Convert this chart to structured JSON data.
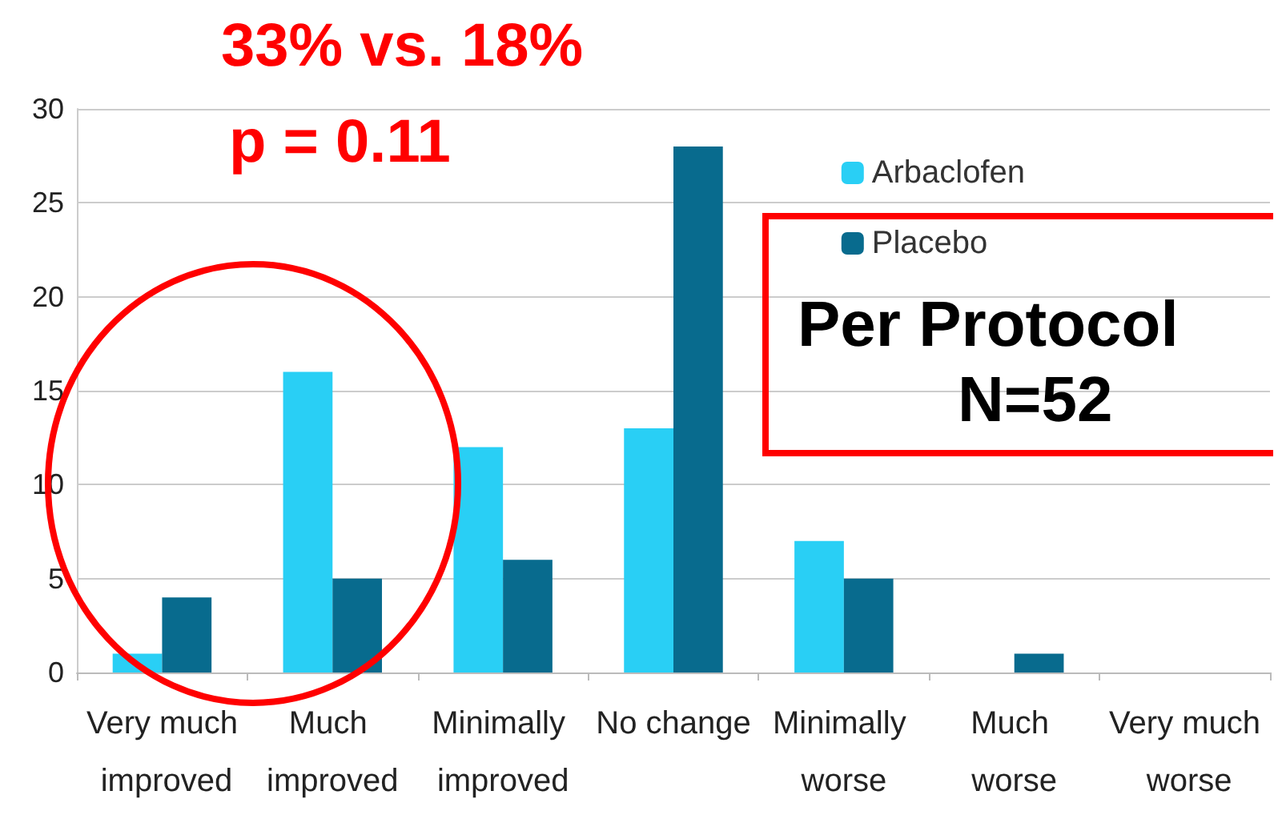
{
  "chart_data": {
    "type": "bar",
    "categories": [
      "Very much improved",
      "Much improved",
      "Minimally improved",
      "No change",
      "Minimally worse",
      "Much worse",
      "Very much worse"
    ],
    "series": [
      {
        "name": "Arbaclofen",
        "color": "#29cff5",
        "values": [
          1,
          16,
          12,
          13,
          7,
          0,
          0
        ]
      },
      {
        "name": "Placebo",
        "color": "#086b8e",
        "values": [
          4,
          5,
          6,
          28,
          5,
          1,
          0
        ]
      }
    ],
    "ylim": [
      0,
      30
    ],
    "yticks": [
      0,
      5,
      10,
      15,
      20,
      25,
      30
    ],
    "grid": "y",
    "legend": "top right",
    "annotations": [
      "33% vs. 18%",
      "p = 0.11",
      "Per Protocol",
      "N=52"
    ]
  }
}
